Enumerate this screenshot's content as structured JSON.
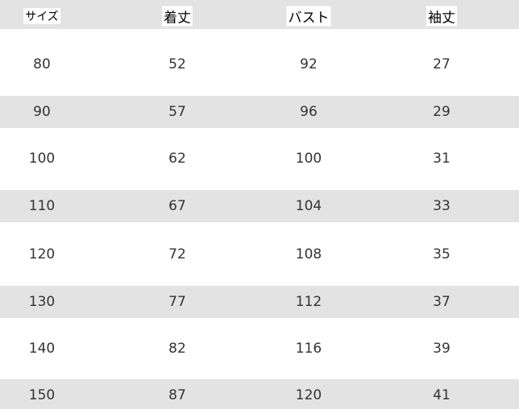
{
  "table": {
    "header": [
      "サイズ",
      "着丈",
      "バスト",
      "袖丈"
    ],
    "rows": [
      [
        80,
        52,
        92,
        27
      ],
      [
        90,
        57,
        96,
        29
      ],
      [
        100,
        62,
        100,
        31
      ],
      [
        110,
        67,
        104,
        33
      ],
      [
        120,
        72,
        108,
        35
      ],
      [
        130,
        77,
        112,
        37
      ],
      [
        140,
        82,
        116,
        39
      ],
      [
        150,
        87,
        120,
        41
      ]
    ]
  }
}
